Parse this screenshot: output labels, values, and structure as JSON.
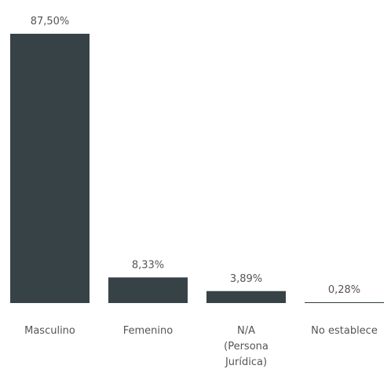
{
  "chart_data": {
    "type": "bar",
    "categories": [
      "Masculino",
      "Femenino",
      "N/A (Persona Jurídica)",
      "No establece"
    ],
    "values": [
      87.5,
      8.33,
      3.89,
      0.28
    ],
    "value_labels": [
      "87,50%",
      "8,33%",
      "3,89%",
      "0,28%"
    ],
    "color": "#374246"
  }
}
